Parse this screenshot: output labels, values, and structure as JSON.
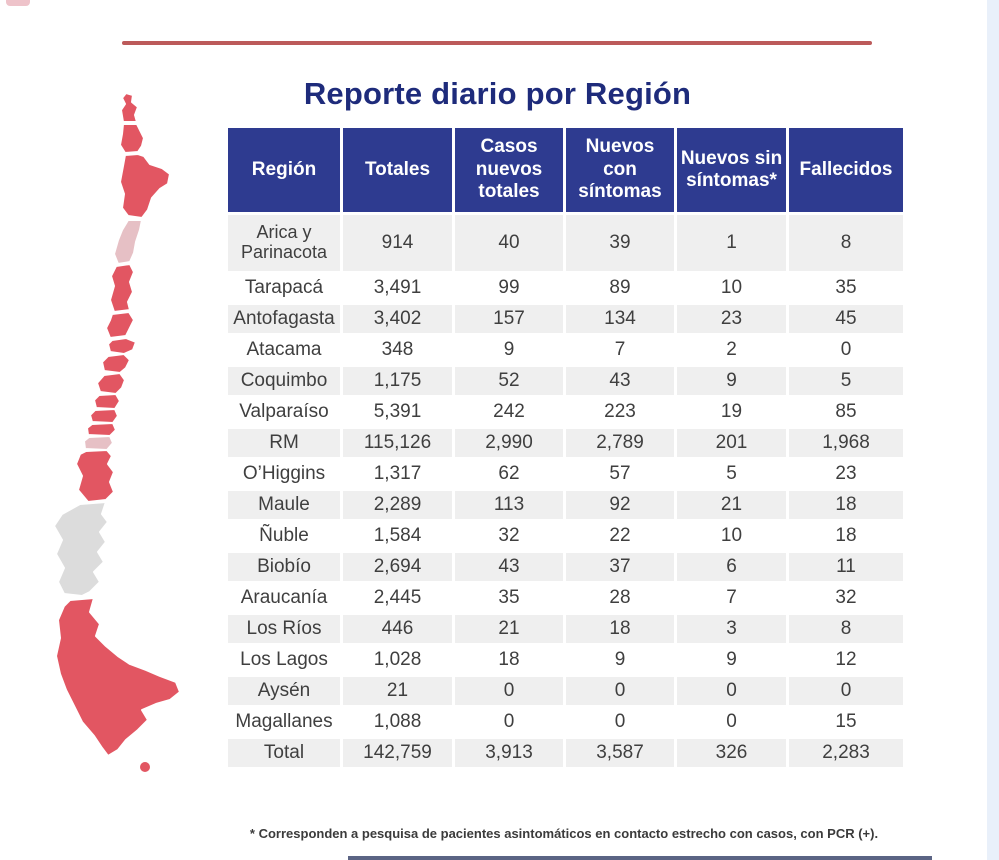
{
  "page": {
    "title": "Reporte diario por Región"
  },
  "colors": {
    "header_bg": "#2e3b90",
    "title": "#1e2b7b",
    "row_alt": "#efefef",
    "text": "#3f3f3f",
    "accent_line": "#bc5a5a",
    "side_strip": "#e9f0fa",
    "bottom_line": "#5b6484",
    "corner_mark": "#eec3ca",
    "map_red": "#e25662",
    "map_pink": "#e6c0c5",
    "map_gray": "#dcdcdc"
  },
  "chart_data": {
    "type": "table",
    "title": "Reporte diario por Región",
    "columns": [
      "Región",
      "Totales",
      "Casos nuevos totales",
      "Nuevos con síntomas",
      "Nuevos sin síntomas*",
      "Fallecidos"
    ],
    "rows": [
      [
        "Arica y Parinacota",
        "914",
        "40",
        "39",
        "1",
        "8"
      ],
      [
        "Tarapacá",
        "3,491",
        "99",
        "89",
        "10",
        "35"
      ],
      [
        "Antofagasta",
        "3,402",
        "157",
        "134",
        "23",
        "45"
      ],
      [
        "Atacama",
        "348",
        "9",
        "7",
        "2",
        "0"
      ],
      [
        "Coquimbo",
        "1,175",
        "52",
        "43",
        "9",
        "5"
      ],
      [
        "Valparaíso",
        "5,391",
        "242",
        "223",
        "19",
        "85"
      ],
      [
        "RM",
        "115,126",
        "2,990",
        "2,789",
        "201",
        "1,968"
      ],
      [
        "O’Higgins",
        "1,317",
        "62",
        "57",
        "5",
        "23"
      ],
      [
        "Maule",
        "2,289",
        "113",
        "92",
        "21",
        "18"
      ],
      [
        "Ñuble",
        "1,584",
        "32",
        "22",
        "10",
        "18"
      ],
      [
        "Biobío",
        "2,694",
        "43",
        "37",
        "6",
        "11"
      ],
      [
        "Araucanía",
        "2,445",
        "35",
        "28",
        "7",
        "32"
      ],
      [
        "Los Ríos",
        "446",
        "21",
        "18",
        "3",
        "8"
      ],
      [
        "Los Lagos",
        "1,028",
        "18",
        "9",
        "9",
        "12"
      ],
      [
        "Aysén",
        "21",
        "0",
        "0",
        "0",
        "0"
      ],
      [
        "Magallanes",
        "1,088",
        "0",
        "0",
        "0",
        "15"
      ],
      [
        "Total",
        "142,759",
        "3,913",
        "3,587",
        "326",
        "2,283"
      ]
    ],
    "footnote": "* Corresponden a pesquisa de pacientes asintomáticos en contacto estrecho con casos, con PCR (+)."
  },
  "map": {
    "regions": [
      {
        "name": "Arica y Parinacota",
        "color": "#e25662"
      },
      {
        "name": "Tarapacá",
        "color": "#e25662"
      },
      {
        "name": "Antofagasta",
        "color": "#e25662"
      },
      {
        "name": "Atacama",
        "color": "#e6c0c5"
      },
      {
        "name": "Coquimbo",
        "color": "#e25662"
      },
      {
        "name": "Valparaíso",
        "color": "#e25662"
      },
      {
        "name": "RM",
        "color": "#e25662"
      },
      {
        "name": "O’Higgins",
        "color": "#e25662"
      },
      {
        "name": "Maule",
        "color": "#e25662"
      },
      {
        "name": "Ñuble",
        "color": "#e25662"
      },
      {
        "name": "Biobío",
        "color": "#e25662"
      },
      {
        "name": "Araucanía",
        "color": "#e25662"
      },
      {
        "name": "Los Ríos",
        "color": "#e6c0c5"
      },
      {
        "name": "Los Lagos",
        "color": "#e25662"
      },
      {
        "name": "Aysén",
        "color": "#dcdcdc"
      },
      {
        "name": "Magallanes",
        "color": "#e25662"
      }
    ]
  }
}
